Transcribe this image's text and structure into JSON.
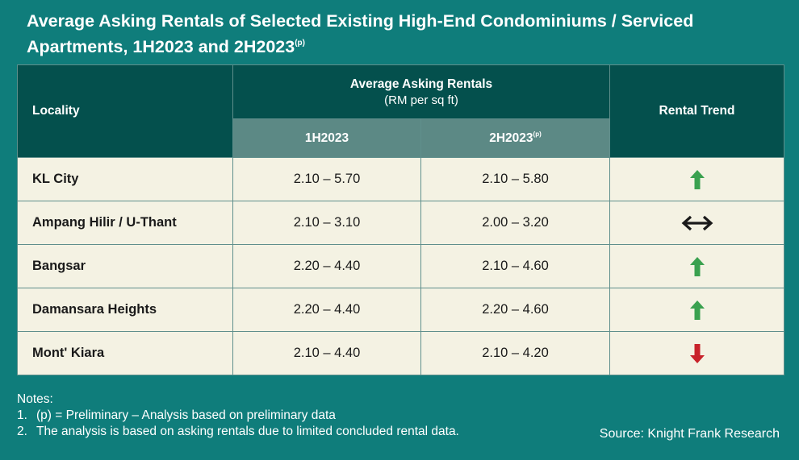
{
  "title": {
    "text": "Average Asking Rentals of Selected Existing High-End Condominiums / Serviced Apartments, 1H2023 and 2H2023",
    "superscript": "(p)"
  },
  "table": {
    "headers": {
      "locality": "Locality",
      "rentals_group": "Average Asking Rentals",
      "rentals_unit": "(RM per sq ft)",
      "col_1h": "1H2023",
      "col_2h": "2H2023",
      "col_2h_sup": "(p)",
      "trend": "Rental Trend"
    }
  },
  "chart_data": {
    "type": "table",
    "columns": [
      "Locality",
      "1H2023",
      "2H2023(p)",
      "Rental Trend"
    ],
    "rows": [
      {
        "locality": "KL City",
        "h1": "2.10 – 5.70",
        "h2": "2.10 – 5.80",
        "trend": "up"
      },
      {
        "locality": "Ampang Hilir / U-Thant",
        "h1": "2.10 – 3.10",
        "h2": "2.00 – 3.20",
        "trend": "stable"
      },
      {
        "locality": "Bangsar",
        "h1": "2.20 – 4.40",
        "h2": "2.10 – 4.60",
        "trend": "up"
      },
      {
        "locality": "Damansara Heights",
        "h1": "2.20 – 4.40",
        "h2": "2.20 – 4.60",
        "trend": "up"
      },
      {
        "locality": "Mont' Kiara",
        "h1": "2.10 – 4.40",
        "h2": "2.10 – 4.20",
        "trend": "down"
      }
    ]
  },
  "notes": {
    "heading": "Notes:",
    "items": [
      {
        "num": "1.",
        "text": "(p) = Preliminary – Analysis based on preliminary data"
      },
      {
        "num": "2.",
        "text": "The analysis is based on asking rentals due to limited concluded rental data."
      }
    ]
  },
  "source": "Source: Knight Frank Research",
  "colors": {
    "background": "#0f7d7b",
    "header_dark": "#04504d",
    "header_mid": "#5c8985",
    "row_bg": "#f4f2e3",
    "arrow_up": "#3aa14f",
    "arrow_down": "#c8232b",
    "arrow_stable": "#1a1a1a"
  }
}
